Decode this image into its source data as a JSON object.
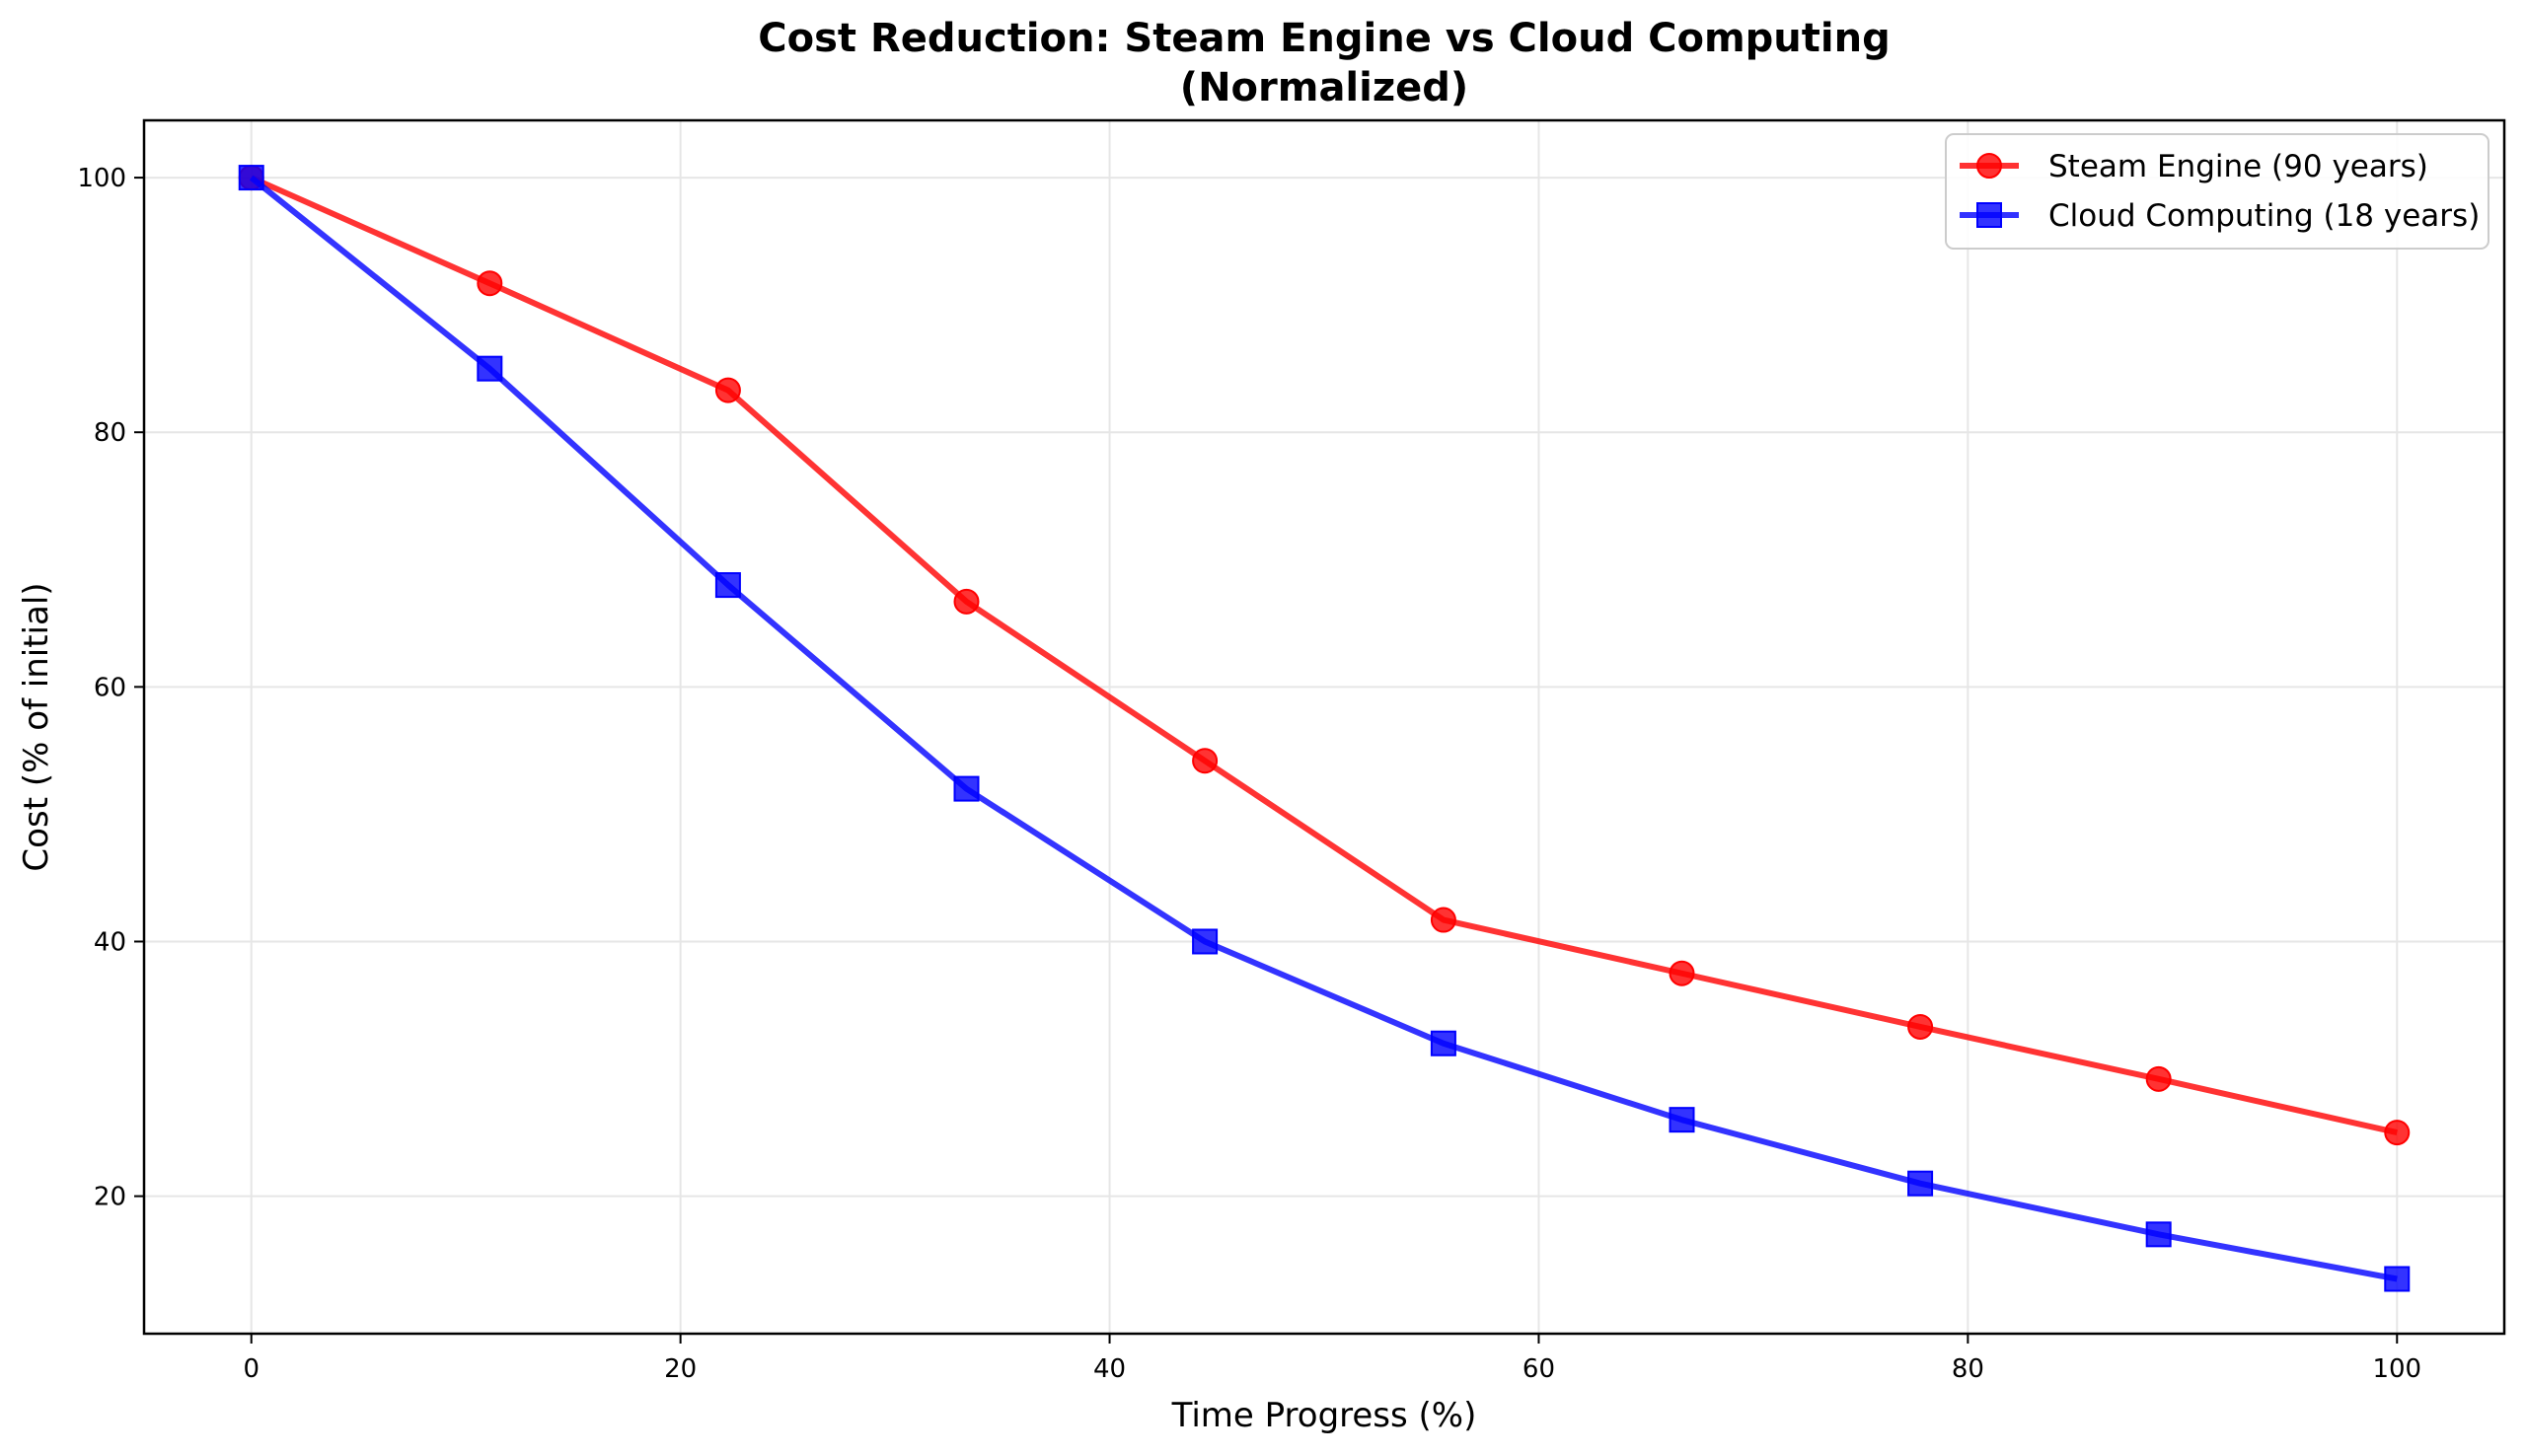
{
  "chart_data": {
    "type": "line",
    "title_lines": [
      "Cost Reduction: Steam Engine vs Cloud Computing",
      "(Normalized)"
    ],
    "xlabel": "Time Progress (%)",
    "ylabel": "Cost (% of initial)",
    "xlim": [
      -5,
      105
    ],
    "ylim": [
      9.2,
      104.5
    ],
    "xticks": [
      0,
      20,
      40,
      60,
      80,
      100
    ],
    "yticks": [
      20,
      40,
      60,
      80,
      100
    ],
    "grid": true,
    "legend_position": "top-right",
    "series": [
      {
        "name": "Steam Engine (90 years)",
        "color": "#ff0000",
        "marker": "circle",
        "x": [
          0,
          11.11,
          22.22,
          33.33,
          44.44,
          55.56,
          66.67,
          77.78,
          88.89,
          100
        ],
        "y": [
          100,
          91.7,
          83.3,
          66.7,
          54.2,
          41.7,
          37.5,
          33.3,
          29.2,
          25.0
        ]
      },
      {
        "name": "Cloud Computing (18 years)",
        "color": "#0000ff",
        "marker": "square",
        "x": [
          0,
          11.11,
          22.22,
          33.33,
          44.44,
          55.56,
          66.67,
          77.78,
          88.89,
          100
        ],
        "y": [
          100,
          85,
          68,
          52,
          40,
          32,
          26,
          21,
          17,
          13.5
        ]
      }
    ]
  }
}
